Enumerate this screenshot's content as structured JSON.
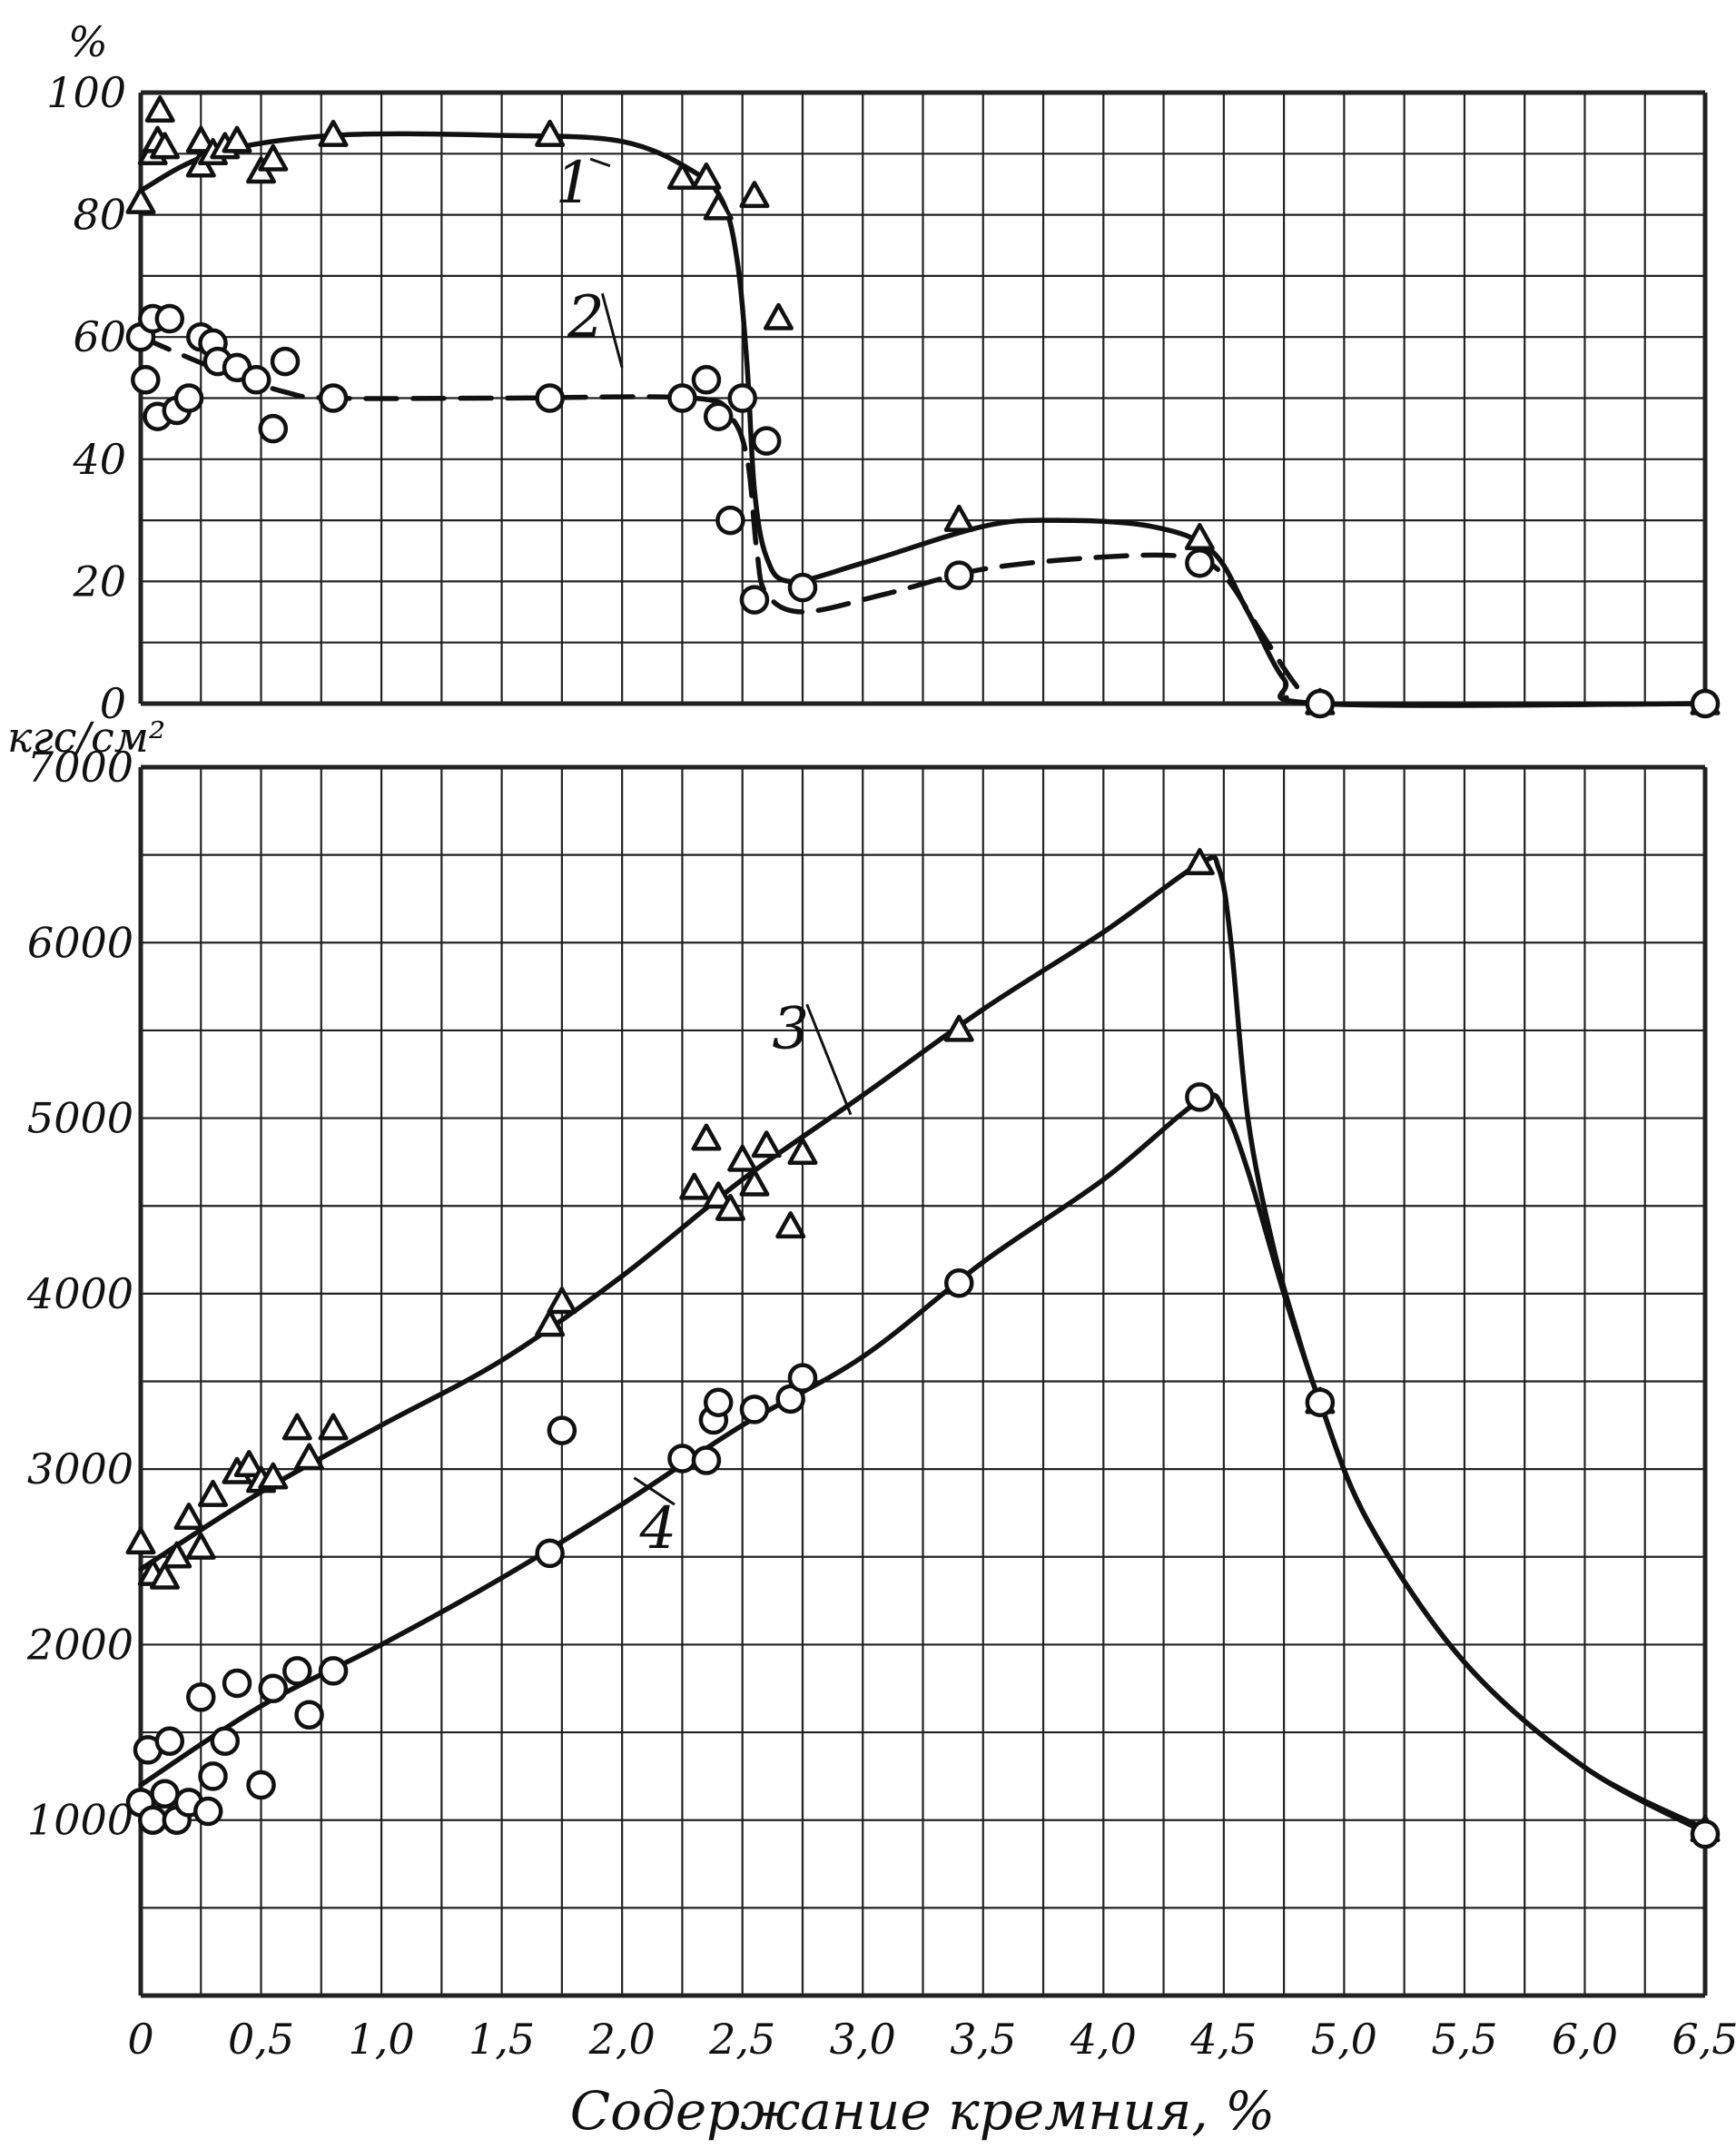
{
  "chart_data": [
    {
      "id": "top",
      "type": "scatter",
      "ylabel": "%",
      "xlim": [
        0,
        6.5
      ],
      "ylim": [
        0,
        100
      ],
      "grid": true,
      "yticks": [
        0,
        20,
        40,
        60,
        80,
        100
      ],
      "series": [
        {
          "name": "1",
          "marker": "triangle",
          "line": "solid",
          "points": [
            [
              0.0,
              82
            ],
            [
              0.05,
              90
            ],
            [
              0.07,
              92
            ],
            [
              0.08,
              97
            ],
            [
              0.1,
              91
            ],
            [
              0.25,
              88
            ],
            [
              0.25,
              92
            ],
            [
              0.3,
              90
            ],
            [
              0.35,
              91
            ],
            [
              0.4,
              92
            ],
            [
              0.5,
              87
            ],
            [
              0.55,
              89
            ],
            [
              0.8,
              93
            ],
            [
              1.7,
              93
            ],
            [
              2.25,
              86
            ],
            [
              2.35,
              86
            ],
            [
              2.4,
              81
            ],
            [
              2.55,
              83
            ],
            [
              2.65,
              63
            ],
            [
              3.4,
              30
            ],
            [
              4.4,
              27
            ],
            [
              4.9,
              0
            ],
            [
              6.5,
              0
            ]
          ],
          "curve": [
            [
              0.0,
              84
            ],
            [
              0.3,
              90
            ],
            [
              0.8,
              93
            ],
            [
              1.5,
              93
            ],
            [
              2.0,
              92
            ],
            [
              2.3,
              87
            ],
            [
              2.42,
              82
            ],
            [
              2.48,
              72
            ],
            [
              2.52,
              55
            ],
            [
              2.55,
              35
            ],
            [
              2.6,
              24
            ],
            [
              2.7,
              20
            ],
            [
              3.0,
              23
            ],
            [
              3.5,
              29
            ],
            [
              3.8,
              30
            ],
            [
              4.2,
              29
            ],
            [
              4.45,
              25
            ],
            [
              4.6,
              15
            ],
            [
              4.75,
              4
            ],
            [
              4.9,
              0
            ],
            [
              6.5,
              0
            ]
          ]
        },
        {
          "name": "2",
          "marker": "circle",
          "line": "dashed",
          "points": [
            [
              0.0,
              60
            ],
            [
              0.02,
              53
            ],
            [
              0.05,
              63
            ],
            [
              0.07,
              47
            ],
            [
              0.12,
              63
            ],
            [
              0.15,
              48
            ],
            [
              0.2,
              50
            ],
            [
              0.25,
              60
            ],
            [
              0.3,
              59
            ],
            [
              0.32,
              56
            ],
            [
              0.4,
              55
            ],
            [
              0.48,
              53
            ],
            [
              0.55,
              45
            ],
            [
              0.6,
              56
            ],
            [
              0.8,
              50
            ],
            [
              1.7,
              50
            ],
            [
              2.25,
              50
            ],
            [
              2.35,
              53
            ],
            [
              2.4,
              47
            ],
            [
              2.45,
              30
            ],
            [
              2.5,
              50
            ],
            [
              2.55,
              17
            ],
            [
              2.6,
              43
            ],
            [
              2.75,
              19
            ],
            [
              3.4,
              21
            ],
            [
              4.4,
              23
            ],
            [
              4.9,
              0
            ],
            [
              6.5,
              0
            ]
          ],
          "curve": [
            [
              0.0,
              60
            ],
            [
              0.3,
              55
            ],
            [
              0.6,
              51
            ],
            [
              0.8,
              50
            ],
            [
              1.5,
              50
            ],
            [
              2.3,
              50
            ],
            [
              2.45,
              47
            ],
            [
              2.52,
              40
            ],
            [
              2.56,
              25
            ],
            [
              2.6,
              18
            ],
            [
              2.75,
              15
            ],
            [
              3.1,
              18
            ],
            [
              3.5,
              22
            ],
            [
              4.0,
              24
            ],
            [
              4.35,
              24
            ],
            [
              4.5,
              21
            ],
            [
              4.65,
              12
            ],
            [
              4.8,
              3
            ],
            [
              4.9,
              0
            ],
            [
              6.5,
              0
            ]
          ]
        }
      ],
      "annotations": [
        {
          "text": "1",
          "x": 1.8,
          "y": 82
        },
        {
          "text": "2",
          "x": 1.85,
          "y": 60
        }
      ]
    },
    {
      "id": "bottom",
      "type": "scatter",
      "ylabel": "кгс/см²",
      "xlabel": "Содержание кремния, %",
      "xlim": [
        0,
        6.5
      ],
      "ylim": [
        0,
        7000
      ],
      "grid": true,
      "yticks": [
        1000,
        2000,
        3000,
        4000,
        5000,
        6000,
        7000
      ],
      "xticks": [
        "0",
        "0,5",
        "1,0",
        "1,5",
        "2,0",
        "2,5",
        "3,0",
        "3,5",
        "4,0",
        "4,5",
        "5,0",
        "5,5",
        "6,0",
        "6,5"
      ],
      "series": [
        {
          "name": "3",
          "marker": "triangle",
          "line": "solid",
          "points": [
            [
              0.0,
              2580
            ],
            [
              0.05,
              2400
            ],
            [
              0.1,
              2380
            ],
            [
              0.15,
              2500
            ],
            [
              0.2,
              2720
            ],
            [
              0.25,
              2550
            ],
            [
              0.3,
              2850
            ],
            [
              0.4,
              2980
            ],
            [
              0.45,
              3020
            ],
            [
              0.5,
              2930
            ],
            [
              0.55,
              2950
            ],
            [
              0.65,
              3230
            ],
            [
              0.7,
              3060
            ],
            [
              0.8,
              3230
            ],
            [
              1.7,
              3820
            ],
            [
              1.75,
              3950
            ],
            [
              2.3,
              4600
            ],
            [
              2.35,
              4880
            ],
            [
              2.4,
              4550
            ],
            [
              2.45,
              4480
            ],
            [
              2.5,
              4760
            ],
            [
              2.55,
              4620
            ],
            [
              2.6,
              4840
            ],
            [
              2.7,
              4380
            ],
            [
              2.75,
              4800
            ],
            [
              3.4,
              5500
            ],
            [
              4.4,
              6450
            ],
            [
              4.9,
              3380
            ],
            [
              6.5,
              940
            ]
          ],
          "curve": [
            [
              0.0,
              2430
            ],
            [
              0.5,
              2870
            ],
            [
              1.0,
              3250
            ],
            [
              1.5,
              3620
            ],
            [
              2.0,
              4100
            ],
            [
              2.5,
              4650
            ],
            [
              3.0,
              5130
            ],
            [
              3.5,
              5620
            ],
            [
              4.0,
              6060
            ],
            [
              4.4,
              6450
            ],
            [
              4.48,
              6420
            ],
            [
              4.53,
              6000
            ],
            [
              4.6,
              5000
            ],
            [
              4.7,
              4300
            ],
            [
              4.8,
              3800
            ],
            [
              4.9,
              3380
            ],
            [
              5.1,
              2700
            ],
            [
              5.5,
              1900
            ],
            [
              6.0,
              1300
            ],
            [
              6.5,
              950
            ]
          ]
        },
        {
          "name": "4",
          "marker": "circle",
          "line": "solid",
          "points": [
            [
              0.0,
              1100
            ],
            [
              0.03,
              1400
            ],
            [
              0.05,
              1000
            ],
            [
              0.1,
              1150
            ],
            [
              0.12,
              1450
            ],
            [
              0.15,
              1000
            ],
            [
              0.2,
              1100
            ],
            [
              0.25,
              1700
            ],
            [
              0.28,
              1050
            ],
            [
              0.3,
              1250
            ],
            [
              0.35,
              1450
            ],
            [
              0.4,
              1780
            ],
            [
              0.5,
              1200
            ],
            [
              0.55,
              1750
            ],
            [
              0.65,
              1850
            ],
            [
              0.7,
              1600
            ],
            [
              0.8,
              1850
            ],
            [
              1.7,
              2520
            ],
            [
              1.75,
              3220
            ],
            [
              2.25,
              3060
            ],
            [
              2.35,
              3050
            ],
            [
              2.38,
              3280
            ],
            [
              2.4,
              3380
            ],
            [
              2.55,
              3340
            ],
            [
              2.7,
              3400
            ],
            [
              2.75,
              3520
            ],
            [
              3.4,
              4060
            ],
            [
              4.4,
              5120
            ],
            [
              4.9,
              3380
            ],
            [
              6.5,
              920
            ]
          ],
          "curve": [
            [
              0.0,
              1200
            ],
            [
              0.5,
              1650
            ],
            [
              1.0,
              2000
            ],
            [
              1.5,
              2380
            ],
            [
              2.0,
              2800
            ],
            [
              2.5,
              3250
            ],
            [
              3.0,
              3640
            ],
            [
              3.5,
              4180
            ],
            [
              4.0,
              4650
            ],
            [
              4.4,
              5100
            ],
            [
              4.5,
              5050
            ],
            [
              4.6,
              4700
            ],
            [
              4.75,
              4000
            ],
            [
              4.9,
              3380
            ],
            [
              5.1,
              2700
            ],
            [
              5.5,
              1900
            ],
            [
              6.0,
              1300
            ],
            [
              6.5,
              930
            ]
          ]
        }
      ],
      "annotations": [
        {
          "text": "3",
          "x": 2.7,
          "y": 5400
        },
        {
          "text": "4",
          "x": 2.15,
          "y": 2550
        }
      ]
    }
  ]
}
